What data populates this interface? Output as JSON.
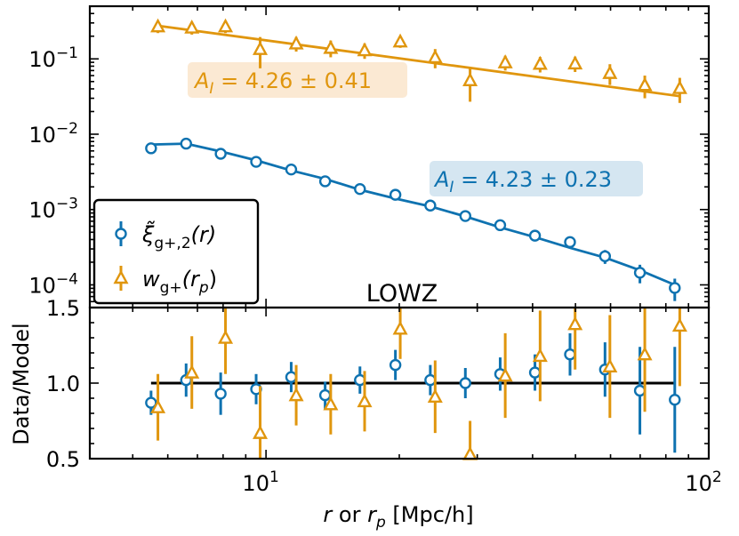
{
  "chart_data": {
    "type": "line",
    "title": "LOWZ",
    "xlabel_prefix": "r",
    "xlabel_mid": " or ",
    "xlabel_var": "r",
    "xlabel_sub": "p",
    "xlabel_unit": " [Mpc/h]",
    "x_scale": "log",
    "xlim": [
      4.0,
      100.0
    ],
    "x_ticks": [
      {
        "value": 10,
        "base": "10",
        "exp": "1"
      },
      {
        "value": 100,
        "base": "10",
        "exp": "2"
      }
    ],
    "colors": {
      "xi": "#0e72b0",
      "w": "#e0960e",
      "axis": "#000000",
      "ann_xi_bg": "#d5e6f1",
      "ann_w_bg": "#fbe9d3"
    },
    "top_panel": {
      "y_scale": "log",
      "ylim": [
        5e-05,
        0.5
      ],
      "y_ticks": [
        {
          "value": 0.1,
          "base": "10",
          "exp": "−1"
        },
        {
          "value": 0.01,
          "base": "10",
          "exp": "−2"
        },
        {
          "value": 0.001,
          "base": "10",
          "exp": "−3"
        },
        {
          "value": 0.0001,
          "base": "10",
          "exp": "−4"
        }
      ],
      "series": [
        {
          "name": "xi_gplus2",
          "marker": "circle",
          "x": [
            5.5,
            6.6,
            7.9,
            9.5,
            11.4,
            13.6,
            16.3,
            19.6,
            23.5,
            28.2,
            33.8,
            40.5,
            48.6,
            58.3,
            69.9,
            83.8
          ],
          "y": [
            0.0065,
            0.0075,
            0.0055,
            0.0043,
            0.0034,
            0.00237,
            0.00187,
            0.00157,
            0.00113,
            0.00082,
            0.00062,
            0.00045,
            0.00037,
            0.00024,
            0.000145,
            9.1e-05
          ],
          "err": [
            0.0004,
            0.0005,
            0.0008,
            0.0004,
            0.0003,
            0.0002,
            0.00015,
            0.00012,
            0.0001,
            7e-05,
            6e-05,
            5e-05,
            5e-05,
            5e-05,
            4e-05,
            3e-05
          ],
          "model_x": [
            5.5,
            6.6,
            7.9,
            9.5,
            11.4,
            13.6,
            16.3,
            19.6,
            23.5,
            28.2,
            33.8,
            40.5,
            48.6,
            58.3,
            69.9,
            83.8
          ],
          "model_y": [
            0.0073,
            0.0075,
            0.0059,
            0.0045,
            0.0033,
            0.00255,
            0.00183,
            0.0014,
            0.0011,
            0.00081,
            0.00058,
            0.00043,
            0.00031,
            0.00023,
            0.000156,
            0.0001
          ]
        },
        {
          "name": "w_gplus",
          "marker": "triangle",
          "x": [
            5.7,
            6.8,
            8.1,
            9.7,
            11.7,
            14.0,
            16.7,
            20.1,
            24.1,
            28.9,
            34.7,
            41.6,
            49.9,
            59.8,
            71.7,
            86.0
          ],
          "y": [
            0.27,
            0.26,
            0.27,
            0.135,
            0.16,
            0.14,
            0.13,
            0.17,
            0.105,
            0.052,
            0.09,
            0.086,
            0.087,
            0.065,
            0.045,
            0.041
          ],
          "err": [
            0.05,
            0.05,
            0.05,
            0.06,
            0.035,
            0.035,
            0.03,
            0.03,
            0.03,
            0.025,
            0.02,
            0.02,
            0.02,
            0.02,
            0.015,
            0.015
          ],
          "model_x": [
            5.7,
            86.0
          ],
          "model_y": [
            0.275,
            0.032
          ]
        }
      ],
      "legend": {
        "position": "lower-left",
        "entries": [
          {
            "symbol": "ξ̃",
            "sub": "g+,2",
            "tail": "(r)"
          },
          {
            "symbol": "w",
            "sub": "g+",
            "tail": "(r",
            "tail_sub": "p",
            "tail_end": ")"
          }
        ]
      },
      "annotations": [
        {
          "series": "w_gplus",
          "prefix": "A",
          "sub": "I",
          "text": " = 4.26 ± 0.41"
        },
        {
          "series": "xi_gplus2",
          "prefix": "A",
          "sub": "I",
          "text": " = 4.23 ± 0.23"
        }
      ]
    },
    "bottom_panel": {
      "ylabel": "Data/Model",
      "ylim": [
        0.5,
        1.5
      ],
      "y_ticks": [
        {
          "value": 0.5,
          "label": "0.5"
        },
        {
          "value": 1.0,
          "label": "1.0"
        },
        {
          "value": 1.5,
          "label": "1.5"
        }
      ],
      "reference_line": 1.0,
      "series": [
        {
          "name": "xi_gplus2",
          "marker": "circle",
          "x": [
            5.5,
            6.6,
            7.9,
            9.5,
            11.4,
            13.6,
            16.3,
            19.6,
            23.5,
            28.2,
            33.8,
            40.5,
            48.6,
            58.3,
            69.9,
            83.8
          ],
          "y": [
            0.87,
            1.02,
            0.93,
            0.96,
            1.04,
            0.92,
            1.02,
            1.12,
            1.02,
            1.0,
            1.06,
            1.07,
            1.19,
            1.09,
            0.95,
            0.89
          ],
          "err": [
            0.08,
            0.11,
            0.14,
            0.1,
            0.1,
            0.09,
            0.09,
            0.1,
            0.1,
            0.1,
            0.11,
            0.12,
            0.14,
            0.18,
            0.29,
            0.35
          ]
        },
        {
          "name": "w_gplus",
          "marker": "triangle",
          "x": [
            5.7,
            6.8,
            8.1,
            9.7,
            11.7,
            14.0,
            16.7,
            20.1,
            24.1,
            28.9,
            34.7,
            41.6,
            49.9,
            59.8,
            71.7,
            86.0
          ],
          "y": [
            0.84,
            1.07,
            1.3,
            0.67,
            0.92,
            0.86,
            0.88,
            1.36,
            0.91,
            0.53,
            1.05,
            1.18,
            1.39,
            1.11,
            1.19,
            1.38
          ],
          "err": [
            0.22,
            0.24,
            0.24,
            0.31,
            0.2,
            0.2,
            0.2,
            0.2,
            0.24,
            0.22,
            0.28,
            0.3,
            0.3,
            0.34,
            0.38,
            0.4
          ]
        }
      ]
    }
  }
}
